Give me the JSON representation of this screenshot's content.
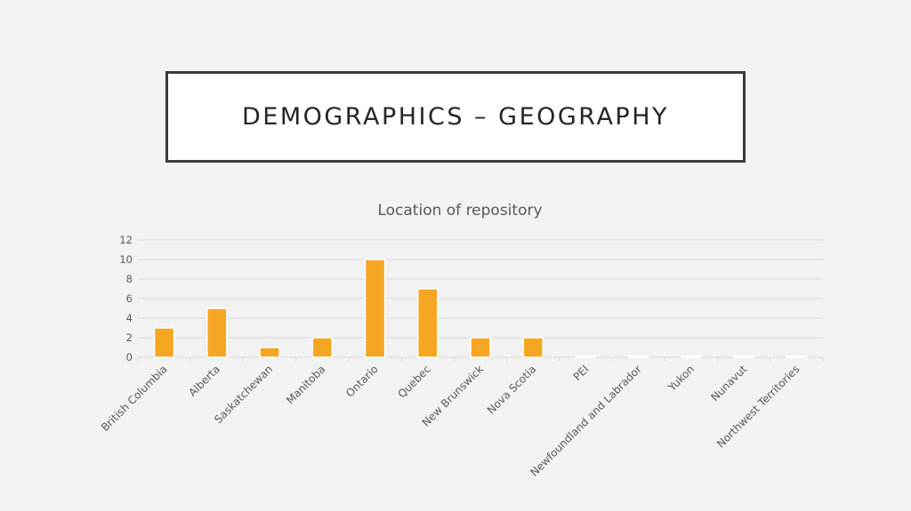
{
  "slide": {
    "title": "DEMOGRAPHICS – GEOGRAPHY"
  },
  "chart_data": {
    "type": "bar",
    "title": "Location of repository",
    "categories": [
      "British Columbia",
      "Alberta",
      "Saskatchewan",
      "Manitoba",
      "Ontario",
      "Quebec",
      "New Brunswick",
      "Nova Scotia",
      "PEI",
      "Newfoundland and Labrador",
      "Yukon",
      "Nunavut",
      "Northwest Territories"
    ],
    "values": [
      3,
      5,
      1,
      2,
      10,
      7,
      2,
      2,
      0,
      0,
      0,
      0,
      0
    ],
    "yticks": [
      0,
      2,
      4,
      6,
      8,
      10,
      12
    ],
    "ylim": [
      0,
      12
    ],
    "grid": true,
    "legend": "none",
    "colors": {
      "bar": "#f5a623",
      "bar_outline": "#ffffff",
      "grid": "#d9d9d9",
      "axis": "#d9d9d9"
    }
  }
}
